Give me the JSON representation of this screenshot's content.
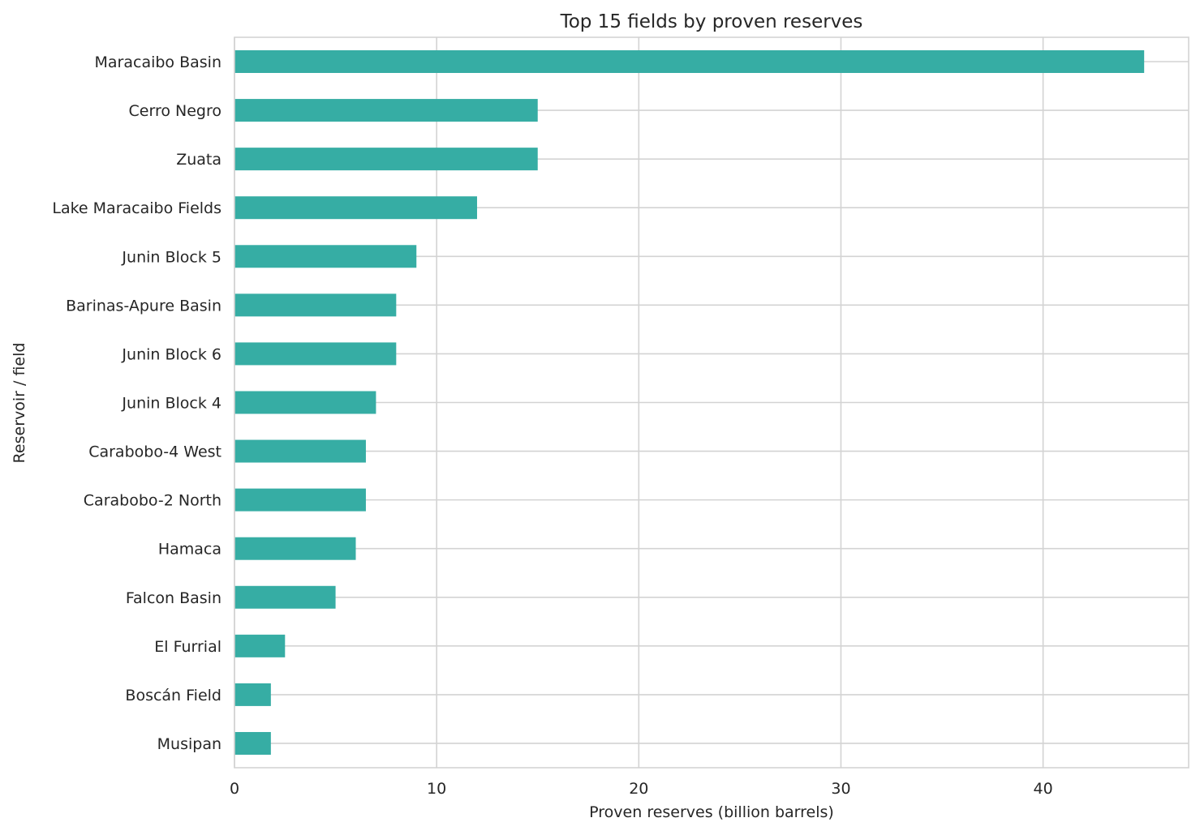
{
  "chart_data": {
    "type": "bar",
    "orientation": "horizontal",
    "title": "Top 15 fields by proven reserves",
    "xlabel": "Proven reserves (billion barrels)",
    "ylabel": "Reservoir / field",
    "xlim": [
      0,
      47.2
    ],
    "xticks": [
      0,
      10,
      20,
      30,
      40
    ],
    "grid": true,
    "bar_color": "#36ada4",
    "categories": [
      "Maracaibo Basin",
      "Cerro Negro",
      "Zuata",
      "Lake Maracaibo Fields",
      "Junin Block 5",
      "Barinas-Apure Basin",
      "Junin Block 6",
      "Junin Block 4",
      "Carabobo-4 West",
      "Carabobo-2 North",
      "Hamaca",
      "Falcon Basin",
      "El Furrial",
      "Boscán Field",
      "Musipan"
    ],
    "values": [
      45,
      15,
      15,
      12,
      9,
      8,
      8,
      7,
      6.5,
      6.5,
      6,
      5,
      2.5,
      1.8,
      1.8
    ]
  }
}
